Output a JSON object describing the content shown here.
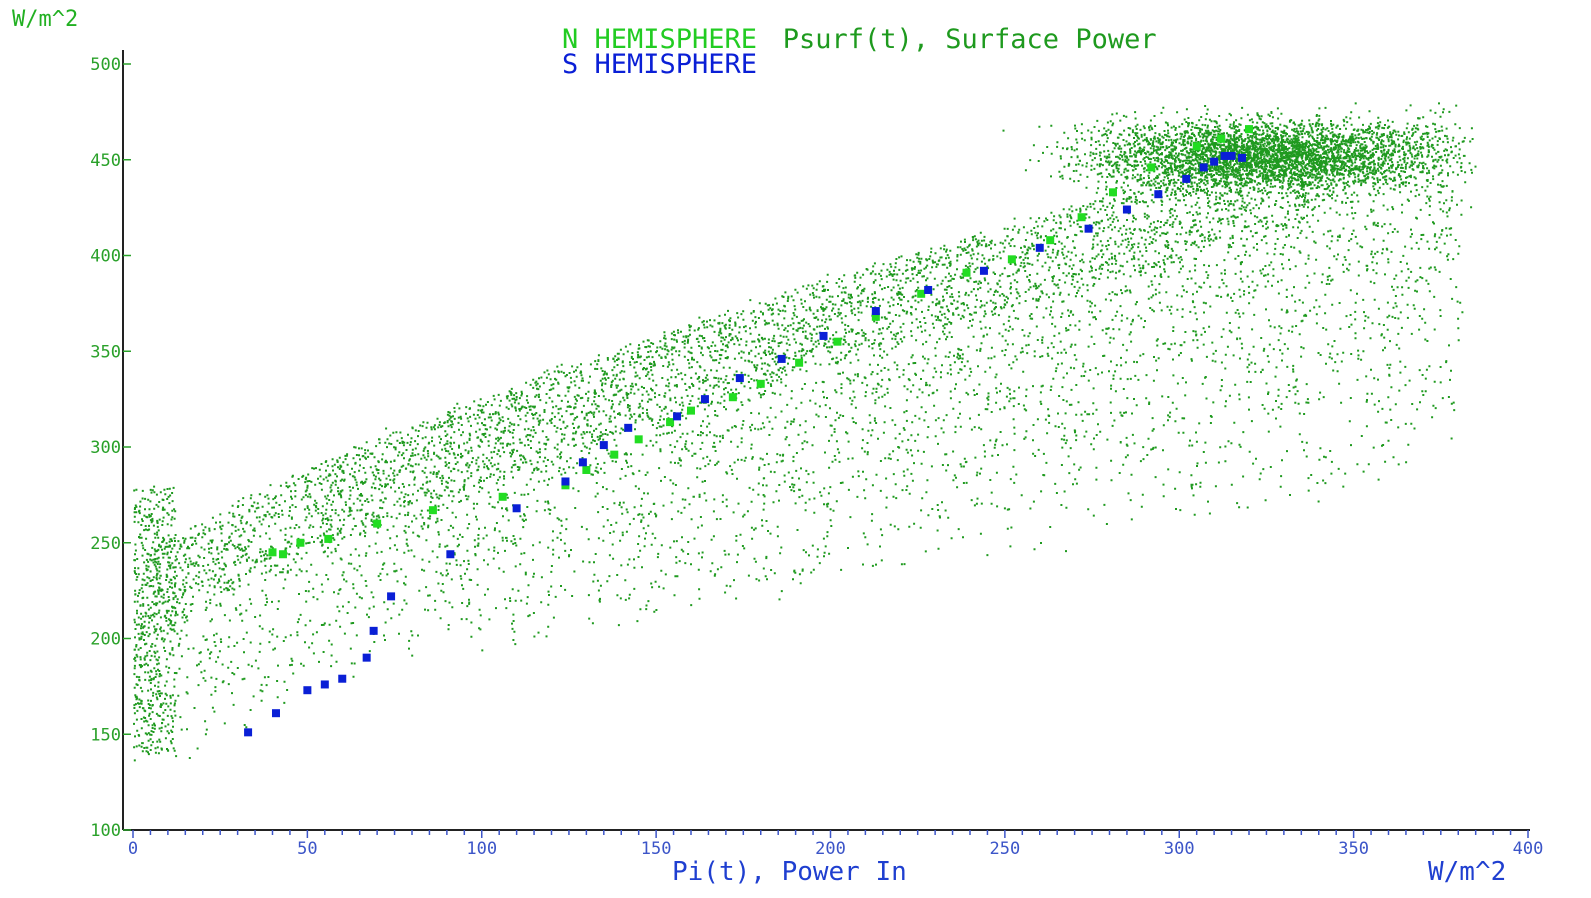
{
  "chart_data": {
    "type": "scatter",
    "title": "N HEMISPHERE Psurf(t), Surface Power",
    "title_parts": {
      "n_hemisphere": "N HEMISPHERE",
      "rest": "Psurf(t), Surface Power",
      "s_hemisphere": "S HEMISPHERE"
    },
    "xlabel": "Pi(t), Power In",
    "ylabel": "",
    "x_unit": "W/m^2",
    "y_unit": "W/m^2",
    "xlim": [
      0,
      400
    ],
    "ylim": [
      100,
      500
    ],
    "x_ticks": [
      "0",
      "50",
      "100",
      "150",
      "200",
      "250",
      "300",
      "350",
      "400"
    ],
    "y_ticks": [
      "100",
      "150",
      "200",
      "250",
      "300",
      "350",
      "400",
      "450",
      "500"
    ],
    "grid": false,
    "legend": "top-center",
    "colors": {
      "cloud": "#1f9a1f",
      "north": "#22dd22",
      "south": "#0a1fd6",
      "axis": "#222222",
      "x_ticks": "#3c55c8",
      "y_ticks": "#2aa12a"
    },
    "series": [
      {
        "name": "N HEMISPHERE",
        "marker": "square",
        "points": [
          [
            40,
            245
          ],
          [
            43,
            244
          ],
          [
            48,
            250
          ],
          [
            56,
            252
          ],
          [
            70,
            260
          ],
          [
            86,
            267
          ],
          [
            106,
            274
          ],
          [
            124,
            280
          ],
          [
            130,
            288
          ],
          [
            138,
            296
          ],
          [
            145,
            304
          ],
          [
            154,
            313
          ],
          [
            160,
            319
          ],
          [
            172,
            326
          ],
          [
            180,
            333
          ],
          [
            191,
            344
          ],
          [
            202,
            355
          ],
          [
            213,
            368
          ],
          [
            226,
            380
          ],
          [
            239,
            391
          ],
          [
            252,
            398
          ],
          [
            263,
            408
          ],
          [
            272,
            420
          ],
          [
            281,
            433
          ],
          [
            292,
            446
          ],
          [
            305,
            457
          ],
          [
            312,
            461
          ],
          [
            320,
            466
          ]
        ]
      },
      {
        "name": "S HEMISPHERE",
        "marker": "square",
        "points": [
          [
            33,
            151
          ],
          [
            41,
            161
          ],
          [
            50,
            173
          ],
          [
            55,
            176
          ],
          [
            60,
            179
          ],
          [
            67,
            190
          ],
          [
            69,
            204
          ],
          [
            74,
            222
          ],
          [
            91,
            244
          ],
          [
            110,
            268
          ],
          [
            124,
            282
          ],
          [
            129,
            292
          ],
          [
            135,
            301
          ],
          [
            142,
            310
          ],
          [
            156,
            316
          ],
          [
            164,
            325
          ],
          [
            174,
            336
          ],
          [
            186,
            346
          ],
          [
            198,
            358
          ],
          [
            213,
            371
          ],
          [
            228,
            382
          ],
          [
            244,
            392
          ],
          [
            260,
            404
          ],
          [
            274,
            414
          ],
          [
            285,
            424
          ],
          [
            294,
            432
          ],
          [
            302,
            440
          ],
          [
            307,
            446
          ],
          [
            310,
            449
          ],
          [
            313,
            452
          ],
          [
            315,
            452
          ],
          [
            318,
            451
          ]
        ]
      }
    ]
  }
}
